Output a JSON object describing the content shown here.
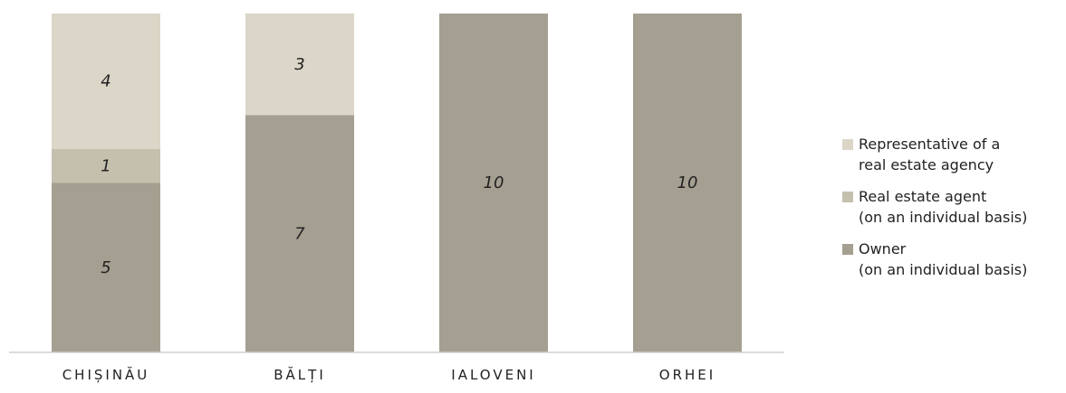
{
  "chart_data": {
    "type": "bar",
    "stacked": true,
    "categories": [
      "CHIȘINĂU",
      "BĂLȚI",
      "IALOVENI",
      "ORHEI"
    ],
    "series": [
      {
        "name": "Owner (on an individual basis)",
        "values": [
          5,
          7,
          10,
          10
        ],
        "color": "#a59f91"
      },
      {
        "name": "Real estate agent (on an individual basis)",
        "values": [
          1,
          0,
          0,
          0
        ],
        "color": "#c5bfae"
      },
      {
        "name": "Representative of a real estate agency",
        "values": [
          4,
          3,
          0,
          0
        ],
        "color": "#dbd6c8"
      }
    ],
    "ylim": [
      0,
      10
    ],
    "grid": false,
    "legend_position": "right",
    "title": "",
    "xlabel": "",
    "ylabel": ""
  },
  "legend": [
    {
      "lines": [
        "Representative of a",
        "real estate agency"
      ],
      "color": "#dbd6c8"
    },
    {
      "lines": [
        "Real estate agent",
        "(on an individual basis)"
      ],
      "color": "#c5bfae"
    },
    {
      "lines": [
        "Owner",
        "(on an individual basis)"
      ],
      "color": "#a59f91"
    }
  ]
}
